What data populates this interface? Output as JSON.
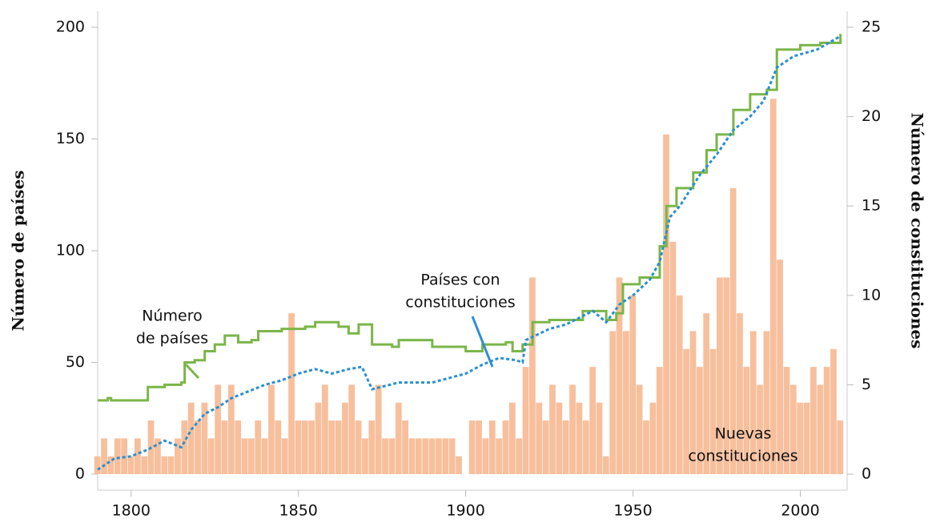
{
  "chart_data": {
    "type": "combo",
    "y_label": "Número de países",
    "y2_label": "Número de constituciones",
    "xlim": [
      1790,
      2014
    ],
    "xticks": [
      1800,
      1850,
      1900,
      1950,
      2000
    ],
    "ylim": [
      0,
      200
    ],
    "yticks": [
      0,
      50,
      100,
      150,
      200
    ],
    "y2lim": [
      0,
      25
    ],
    "y2ticks": [
      0,
      5,
      10,
      15,
      20,
      25
    ],
    "series": [
      {
        "name": "Nuevas constituciones",
        "type": "bar",
        "axis": "y2",
        "color": "#f7bf9c",
        "bar_width": 2,
        "x": [
          1789,
          1791,
          1793,
          1795,
          1797,
          1799,
          1801,
          1803,
          1805,
          1807,
          1809,
          1811,
          1813,
          1815,
          1817,
          1819,
          1821,
          1823,
          1825,
          1827,
          1829,
          1831,
          1833,
          1835,
          1837,
          1839,
          1841,
          1843,
          1845,
          1847,
          1849,
          1851,
          1853,
          1855,
          1857,
          1859,
          1861,
          1863,
          1865,
          1867,
          1869,
          1871,
          1873,
          1875,
          1877,
          1879,
          1881,
          1883,
          1885,
          1887,
          1889,
          1891,
          1893,
          1895,
          1897,
          1899,
          1901,
          1903,
          1905,
          1907,
          1909,
          1911,
          1913,
          1915,
          1917,
          1919,
          1921,
          1923,
          1925,
          1927,
          1929,
          1931,
          1933,
          1935,
          1937,
          1939,
          1941,
          1943,
          1945,
          1947,
          1949,
          1951,
          1953,
          1955,
          1957,
          1959,
          1961,
          1963,
          1965,
          1967,
          1969,
          1971,
          1973,
          1975,
          1977,
          1979,
          1981,
          1983,
          1985,
          1987,
          1989,
          1991,
          1993,
          1995,
          1997,
          1999,
          2001,
          2003,
          2005,
          2007,
          2009,
          2011
        ],
        "values": [
          1,
          2,
          1,
          2,
          2,
          1,
          2,
          1,
          3,
          2,
          1,
          1,
          2,
          3,
          4,
          3,
          4,
          2,
          5,
          3,
          5,
          3,
          2,
          2,
          3,
          2,
          5,
          3,
          2,
          9,
          3,
          3,
          3,
          4,
          5,
          3,
          3,
          4,
          5,
          3,
          2,
          3,
          5,
          2,
          2,
          4,
          3,
          2,
          2,
          2,
          2,
          2,
          2,
          2,
          1,
          0,
          3,
          3,
          2,
          3,
          2,
          3,
          4,
          2,
          6,
          11,
          4,
          3,
          5,
          4,
          3,
          5,
          4,
          3,
          6,
          4,
          1,
          8,
          11,
          8,
          10,
          5,
          3,
          4,
          6,
          19,
          13,
          10,
          7,
          8,
          6,
          9,
          7,
          11,
          11,
          16,
          9,
          6,
          8,
          5,
          8,
          21,
          12,
          6,
          5,
          4,
          4,
          6,
          5,
          6,
          7,
          3
        ]
      },
      {
        "name": "Número de países",
        "type": "step",
        "axis": "y",
        "color": "#7ab648",
        "x": [
          1790,
          1793,
          1794,
          1804,
          1805,
          1810,
          1815,
          1816,
          1819,
          1822,
          1825,
          1828,
          1832,
          1836,
          1838,
          1845,
          1852,
          1855,
          1862,
          1865,
          1868,
          1872,
          1878,
          1880,
          1890,
          1900,
          1905,
          1912,
          1914,
          1917,
          1920,
          1925,
          1935,
          1942,
          1945,
          1947,
          1952,
          1958,
          1960,
          1963,
          1968,
          1972,
          1975,
          1980,
          1985,
          1990,
          1993,
          2000,
          2006,
          2012
        ],
        "values": [
          33,
          34,
          33,
          33,
          39,
          40,
          41,
          50,
          51,
          55,
          58,
          62,
          59,
          60,
          64,
          65,
          66,
          68,
          66,
          63,
          67,
          58,
          57,
          60,
          57,
          55,
          58,
          59,
          55,
          58,
          68,
          69,
          73,
          69,
          72,
          85,
          88,
          102,
          120,
          128,
          135,
          145,
          152,
          163,
          170,
          172,
          190,
          192,
          193,
          197
        ]
      },
      {
        "name": "Países con constituciones",
        "type": "dotted",
        "axis": "y",
        "color": "#2b8fd0",
        "x": [
          1790,
          1795,
          1800,
          1805,
          1810,
          1815,
          1818,
          1822,
          1826,
          1830,
          1835,
          1840,
          1845,
          1850,
          1855,
          1860,
          1865,
          1869,
          1872,
          1880,
          1890,
          1900,
          1905,
          1910,
          1915,
          1917,
          1918,
          1925,
          1930,
          1938,
          1942,
          1946,
          1950,
          1955,
          1958,
          1961,
          1964,
          1970,
          1975,
          1980,
          1985,
          1989,
          1993,
          1998,
          2005,
          2012
        ],
        "values": [
          2,
          7,
          8,
          11,
          15,
          12,
          20,
          27,
          30,
          34,
          37,
          40,
          42,
          45,
          47,
          45,
          47,
          48,
          38,
          41,
          41,
          45,
          49,
          52,
          51,
          50,
          60,
          65,
          67,
          73,
          68,
          76,
          80,
          87,
          95,
          115,
          120,
          134,
          143,
          154,
          160,
          167,
          182,
          187,
          190,
          196
        ]
      }
    ],
    "annotations": [
      [
        "Número",
        "de países"
      ],
      [
        "Países con",
        "constituciones"
      ],
      [
        "Nuevas",
        "constituciones"
      ]
    ]
  }
}
